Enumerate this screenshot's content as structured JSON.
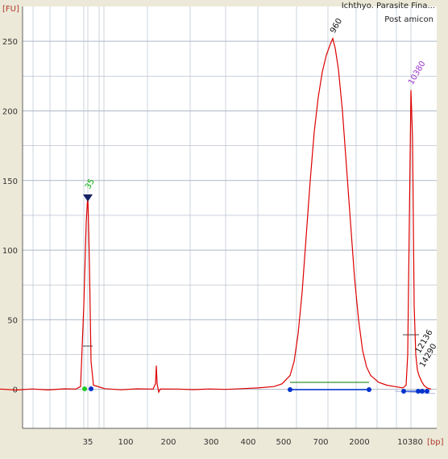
{
  "sample_title": "Ichthyo. Parasite Fina...",
  "sample_subtitle": "Post amicon",
  "colors": {
    "background": "#ece9d8",
    "plot_bg": "#ffffff",
    "grid": "#aeb8c8",
    "axis_label": "#b0382c",
    "trace": "#dd0000",
    "marker_blue": "#0033cc",
    "marker_green": "#22cc22",
    "peak_label_35": "#00aa00",
    "peak_label_10380": "#9933cc"
  },
  "chart_data": {
    "type": "line",
    "ylabel": "[FU]",
    "xlabel": "[bp]",
    "ylim": [
      -28,
      275
    ],
    "yticks": [
      0,
      50,
      100,
      150,
      200,
      250
    ],
    "xticks": [
      "35",
      "100",
      "200",
      "300",
      "400",
      "500",
      "700",
      "2000",
      "10380"
    ],
    "grid": true,
    "series": [
      {
        "points": [
          [
            0,
            0.2
          ],
          [
            20,
            -0.5
          ],
          [
            40,
            0.3
          ],
          [
            60,
            -0.4
          ],
          [
            80,
            0.4
          ],
          [
            94,
            0.2
          ],
          [
            100,
            2
          ],
          [
            104,
            60
          ],
          [
            107,
            120
          ],
          [
            109,
            140
          ],
          [
            111,
            90
          ],
          [
            113,
            20
          ],
          [
            116,
            3
          ],
          [
            130,
            0.5
          ],
          [
            150,
            -0.3
          ],
          [
            170,
            0.4
          ],
          [
            190,
            0.2
          ],
          [
            193,
            4
          ],
          [
            194,
            17
          ],
          [
            195,
            4
          ],
          [
            197,
            -2
          ],
          [
            199,
            0.3
          ],
          [
            220,
            0.2
          ],
          [
            240,
            -0.2
          ],
          [
            260,
            0.3
          ],
          [
            280,
            0
          ],
          [
            300,
            0.5
          ],
          [
            320,
            1
          ],
          [
            340,
            2
          ],
          [
            350,
            4
          ],
          [
            360,
            10
          ],
          [
            365,
            20
          ],
          [
            370,
            40
          ],
          [
            375,
            70
          ],
          [
            380,
            110
          ],
          [
            385,
            150
          ],
          [
            390,
            185
          ],
          [
            395,
            210
          ],
          [
            400,
            228
          ],
          [
            405,
            240
          ],
          [
            410,
            248
          ],
          [
            413,
            252
          ],
          [
            416,
            245
          ],
          [
            420,
            230
          ],
          [
            425,
            200
          ],
          [
            430,
            160
          ],
          [
            435,
            120
          ],
          [
            440,
            80
          ],
          [
            445,
            50
          ],
          [
            450,
            28
          ],
          [
            455,
            16
          ],
          [
            460,
            10
          ],
          [
            470,
            5
          ],
          [
            480,
            3
          ],
          [
            490,
            2
          ],
          [
            500,
            1
          ],
          [
            504,
            3
          ],
          [
            506,
            25
          ],
          [
            508,
            120
          ],
          [
            510,
            215
          ],
          [
            512,
            180
          ],
          [
            514,
            60
          ],
          [
            516,
            25
          ],
          [
            518,
            14
          ],
          [
            520,
            10
          ],
          [
            523,
            6
          ],
          [
            526,
            3
          ],
          [
            530,
            1
          ],
          [
            535,
            0.2
          ]
        ]
      }
    ],
    "peak_labels": [
      {
        "text": "35",
        "x": 109,
        "y": 140
      },
      {
        "text": "960",
        "x": 413,
        "y": 252
      },
      {
        "text": "10380",
        "x": 510,
        "y": 215
      },
      {
        "text": "12136",
        "x": 519,
        "y": 22
      },
      {
        "text": "14290",
        "x": 524,
        "y": 12
      }
    ]
  }
}
